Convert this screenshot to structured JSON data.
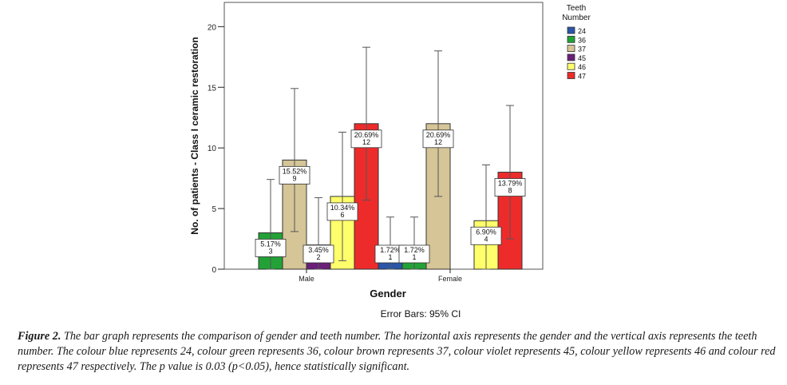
{
  "chart_data": {
    "type": "bar",
    "title": "",
    "xlabel": "Gender",
    "ylabel": "No. of patients - Class I ceramic restoration",
    "ylim": [
      0,
      22
    ],
    "yticks": [
      0,
      5,
      10,
      15,
      20
    ],
    "categories": [
      "Male",
      "Female"
    ],
    "legend_title": "Teeth Number",
    "legend_position": "top-right",
    "error_bar_note": "Error Bars: 95% CI",
    "series": [
      {
        "name": "24",
        "color": "#2a55a8",
        "values": [
          0,
          1
        ],
        "ci_upper": [
          null,
          4.3
        ],
        "labels": [
          "",
          "1.72%\n1"
        ]
      },
      {
        "name": "36",
        "color": "#22a236",
        "values": [
          3,
          1
        ],
        "ci_upper": [
          7.4,
          4.3
        ],
        "labels": [
          "5.17%\n3",
          "1.72%\n1"
        ]
      },
      {
        "name": "37",
        "color": "#d5c597",
        "values": [
          9,
          12
        ],
        "ci_upper": [
          14.9,
          18.0
        ],
        "labels": [
          "15.52%\n9",
          "20.69%\n12"
        ]
      },
      {
        "name": "45",
        "color": "#6b1f79",
        "values": [
          2,
          0
        ],
        "ci_upper": [
          5.9,
          null
        ],
        "labels": [
          "3.45%\n2",
          ""
        ]
      },
      {
        "name": "46",
        "color": "#ffff6b",
        "values": [
          6,
          4
        ],
        "ci_upper": [
          11.3,
          8.6
        ],
        "labels": [
          "10.34%\n6",
          "6.90%\n4"
        ]
      },
      {
        "name": "47",
        "color": "#ee2b2b",
        "values": [
          12,
          8
        ],
        "ci_upper": [
          18.3,
          13.5
        ],
        "labels": [
          "20.69%\n12",
          "13.79%\n8"
        ]
      }
    ]
  },
  "caption": {
    "label": "Figure 2.",
    "text": " The bar graph represents the comparison of gender and teeth number. The horizontal axis represents the gender and the vertical axis represents the teeth number. The colour blue represents 24, colour green represents 36, colour brown represents 37, colour violet represents 45, colour yellow represents 46 and colour red represents 47 respectively. The p value is 0.03 (p<0.05), hence statistically significant."
  }
}
